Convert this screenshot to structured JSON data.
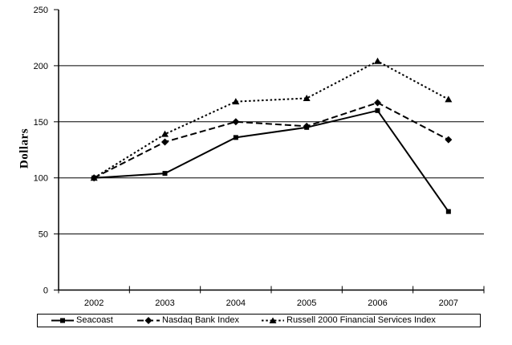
{
  "colors": {
    "foreground": "#000000",
    "background": "#ffffff"
  },
  "chart_data": {
    "type": "line",
    "title": "",
    "xlabel": "",
    "ylabel": "Dollars",
    "categories": [
      "2002",
      "2003",
      "2004",
      "2005",
      "2006",
      "2007"
    ],
    "series": [
      {
        "name": "Seacoast",
        "marker": "square",
        "line_style": "solid",
        "values": [
          100,
          104,
          136,
          145,
          160,
          70
        ]
      },
      {
        "name": "Nasdaq Bank Index",
        "marker": "diamond",
        "line_style": "dashed",
        "values": [
          100,
          132,
          150,
          146,
          167,
          134
        ]
      },
      {
        "name": "Russell 2000 Financial Services Index",
        "marker": "triangle",
        "line_style": "dotted",
        "values": [
          100,
          139,
          168,
          171,
          204,
          170
        ]
      }
    ],
    "ylim": [
      0,
      250
    ],
    "yticks": [
      0,
      50,
      100,
      150,
      200,
      250
    ],
    "grid": "horizontal",
    "legend_position": "bottom",
    "series_color": "#000000"
  }
}
